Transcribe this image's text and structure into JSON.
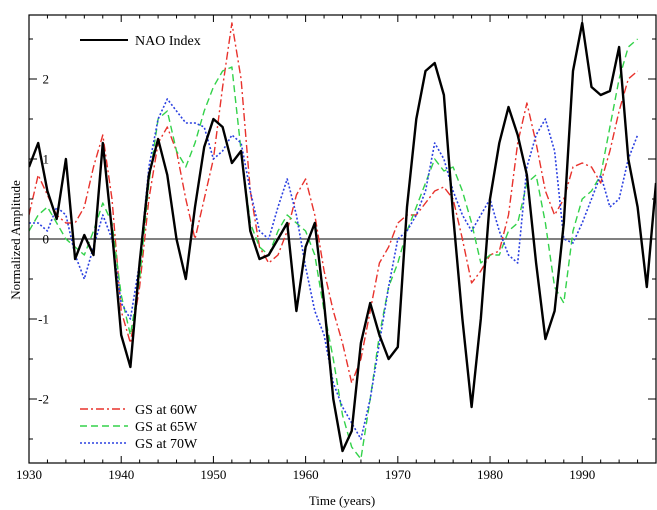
{
  "chart_data": {
    "type": "line",
    "xlabel": "Time (years)",
    "ylabel": "Normalized Amplitude",
    "xlim": [
      1930,
      1998
    ],
    "ylim": [
      -2.8,
      2.8
    ],
    "xticks": [
      1930,
      1940,
      1950,
      1960,
      1970,
      1980,
      1990
    ],
    "yticks": [
      -2,
      -1,
      0,
      1,
      2
    ],
    "zero_line": true,
    "legend_top": "top-left",
    "legend_bottom": "bottom-left",
    "series": [
      {
        "name": "NAO Index",
        "color": "#000000",
        "dash": "",
        "width": 2.4,
        "x": [
          1930,
          1931,
          1932,
          1933,
          1934,
          1935,
          1936,
          1937,
          1938,
          1939,
          1940,
          1941,
          1942,
          1943,
          1944,
          1945,
          1946,
          1947,
          1948,
          1949,
          1950,
          1951,
          1952,
          1953,
          1954,
          1955,
          1956,
          1957,
          1958,
          1959,
          1960,
          1961,
          1962,
          1963,
          1964,
          1965,
          1966,
          1967,
          1968,
          1969,
          1970,
          1971,
          1972,
          1973,
          1974,
          1975,
          1976,
          1977,
          1978,
          1979,
          1980,
          1981,
          1982,
          1983,
          1984,
          1985,
          1986,
          1987,
          1988,
          1989,
          1990,
          1991,
          1992,
          1993,
          1994,
          1995,
          1996,
          1997,
          1998
        ],
        "y": [
          0.9,
          1.2,
          0.6,
          0.25,
          1.0,
          -0.25,
          0.05,
          -0.2,
          1.2,
          0.1,
          -1.2,
          -1.6,
          -0.3,
          0.8,
          1.25,
          0.8,
          0.0,
          -0.5,
          0.4,
          1.15,
          1.5,
          1.4,
          0.95,
          1.1,
          0.1,
          -0.25,
          -0.2,
          0.0,
          0.2,
          -0.9,
          -0.1,
          0.2,
          -0.8,
          -2.0,
          -2.65,
          -2.4,
          -1.3,
          -0.8,
          -1.2,
          -1.5,
          -1.35,
          0.4,
          1.5,
          2.1,
          2.2,
          1.8,
          0.3,
          -1.0,
          -2.1,
          -1.0,
          0.5,
          1.2,
          1.65,
          1.3,
          0.8,
          -0.3,
          -1.25,
          -0.9,
          0.2,
          2.1,
          2.7,
          1.9,
          1.8,
          1.85,
          2.4,
          1.0,
          0.4,
          -0.6,
          0.7
        ]
      },
      {
        "name": "GS at 60W",
        "color": "#e8322c",
        "dash": "8,3,2,3",
        "width": 1.4,
        "x": [
          1930,
          1931,
          1932,
          1933,
          1934,
          1935,
          1936,
          1937,
          1938,
          1939,
          1940,
          1941,
          1942,
          1943,
          1944,
          1945,
          1946,
          1947,
          1948,
          1949,
          1950,
          1951,
          1952,
          1953,
          1954,
          1955,
          1956,
          1957,
          1958,
          1959,
          1960,
          1961,
          1962,
          1963,
          1964,
          1965,
          1966,
          1967,
          1968,
          1969,
          1970,
          1971,
          1972,
          1973,
          1974,
          1975,
          1976,
          1977,
          1978,
          1979,
          1980,
          1981,
          1982,
          1983,
          1984,
          1985,
          1986,
          1987,
          1988,
          1989,
          1990,
          1991,
          1992,
          1993,
          1994,
          1995,
          1996
        ],
        "y": [
          0.3,
          0.8,
          0.55,
          0.3,
          0.2,
          0.2,
          0.4,
          0.9,
          1.3,
          0.5,
          -0.9,
          -1.3,
          -0.6,
          0.5,
          1.2,
          1.4,
          1.1,
          0.5,
          0.0,
          0.5,
          1.0,
          1.9,
          2.7,
          2.0,
          0.6,
          -0.1,
          -0.3,
          -0.2,
          0.1,
          0.55,
          0.75,
          0.3,
          -0.4,
          -0.9,
          -1.3,
          -1.8,
          -1.5,
          -0.9,
          -0.3,
          -0.1,
          0.2,
          0.3,
          0.3,
          0.45,
          0.6,
          0.65,
          0.5,
          0.0,
          -0.55,
          -0.4,
          -0.2,
          -0.15,
          0.3,
          1.2,
          1.7,
          1.2,
          0.6,
          0.3,
          0.5,
          0.9,
          0.95,
          0.9,
          0.7,
          1.1,
          1.6,
          2.0,
          2.1
        ]
      },
      {
        "name": "GS at 65W",
        "color": "#33d24a",
        "dash": "7,4",
        "width": 1.4,
        "x": [
          1930,
          1931,
          1932,
          1933,
          1934,
          1935,
          1936,
          1937,
          1938,
          1939,
          1940,
          1941,
          1942,
          1943,
          1944,
          1945,
          1946,
          1947,
          1948,
          1949,
          1950,
          1951,
          1952,
          1953,
          1954,
          1955,
          1956,
          1957,
          1958,
          1959,
          1960,
          1961,
          1962,
          1963,
          1964,
          1965,
          1966,
          1967,
          1968,
          1969,
          1970,
          1971,
          1972,
          1973,
          1974,
          1975,
          1976,
          1977,
          1978,
          1979,
          1980,
          1981,
          1982,
          1983,
          1984,
          1985,
          1986,
          1987,
          1988,
          1989,
          1990,
          1991,
          1992,
          1993,
          1994,
          1995,
          1996
        ],
        "y": [
          0.1,
          0.3,
          0.4,
          0.2,
          0.0,
          -0.1,
          -0.2,
          0.1,
          0.45,
          0.2,
          -0.7,
          -1.2,
          -0.5,
          0.7,
          1.5,
          1.6,
          1.1,
          0.9,
          1.2,
          1.6,
          1.9,
          2.1,
          2.15,
          1.1,
          0.2,
          -0.1,
          -0.2,
          0.1,
          0.3,
          0.2,
          0.1,
          -0.2,
          -0.9,
          -1.5,
          -2.2,
          -2.6,
          -2.75,
          -2.0,
          -1.2,
          -0.6,
          -0.3,
          0.1,
          0.4,
          0.7,
          1.0,
          0.85,
          0.9,
          0.6,
          0.2,
          -0.3,
          -0.2,
          -0.2,
          0.1,
          0.2,
          0.7,
          0.8,
          0.2,
          -0.6,
          -0.8,
          0.1,
          0.5,
          0.6,
          0.8,
          1.4,
          2.0,
          2.4,
          2.5
        ]
      },
      {
        "name": "GS at 70W",
        "color": "#2b40e0",
        "dash": "2,2",
        "width": 1.6,
        "x": [
          1930,
          1931,
          1932,
          1933,
          1934,
          1935,
          1936,
          1937,
          1938,
          1939,
          1940,
          1941,
          1942,
          1943,
          1944,
          1945,
          1946,
          1947,
          1948,
          1949,
          1950,
          1951,
          1952,
          1953,
          1954,
          1955,
          1956,
          1957,
          1958,
          1959,
          1960,
          1961,
          1962,
          1963,
          1964,
          1965,
          1966,
          1967,
          1968,
          1969,
          1970,
          1971,
          1972,
          1973,
          1974,
          1975,
          1976,
          1977,
          1978,
          1979,
          1980,
          1981,
          1982,
          1983,
          1984,
          1985,
          1986,
          1987,
          1988,
          1989,
          1990,
          1991,
          1992,
          1993,
          1994,
          1995,
          1996
        ],
        "y": [
          0.2,
          0.2,
          0.1,
          0.4,
          0.3,
          -0.2,
          -0.5,
          -0.1,
          0.3,
          0.0,
          -0.8,
          -1.0,
          -0.3,
          0.9,
          1.5,
          1.75,
          1.6,
          1.45,
          1.45,
          1.4,
          1.0,
          1.1,
          1.3,
          1.2,
          0.6,
          0.1,
          0.0,
          0.4,
          0.75,
          0.3,
          -0.35,
          -0.9,
          -1.2,
          -1.8,
          -2.1,
          -2.3,
          -2.5,
          -2.0,
          -1.3,
          -0.6,
          0.0,
          0.1,
          0.3,
          0.6,
          1.2,
          1.0,
          0.6,
          0.3,
          0.1,
          0.3,
          0.5,
          0.1,
          -0.2,
          -0.3,
          0.9,
          1.3,
          1.5,
          1.1,
          0.0,
          -0.05,
          0.2,
          0.5,
          0.8,
          0.4,
          0.5,
          1.0,
          1.3
        ]
      }
    ]
  }
}
